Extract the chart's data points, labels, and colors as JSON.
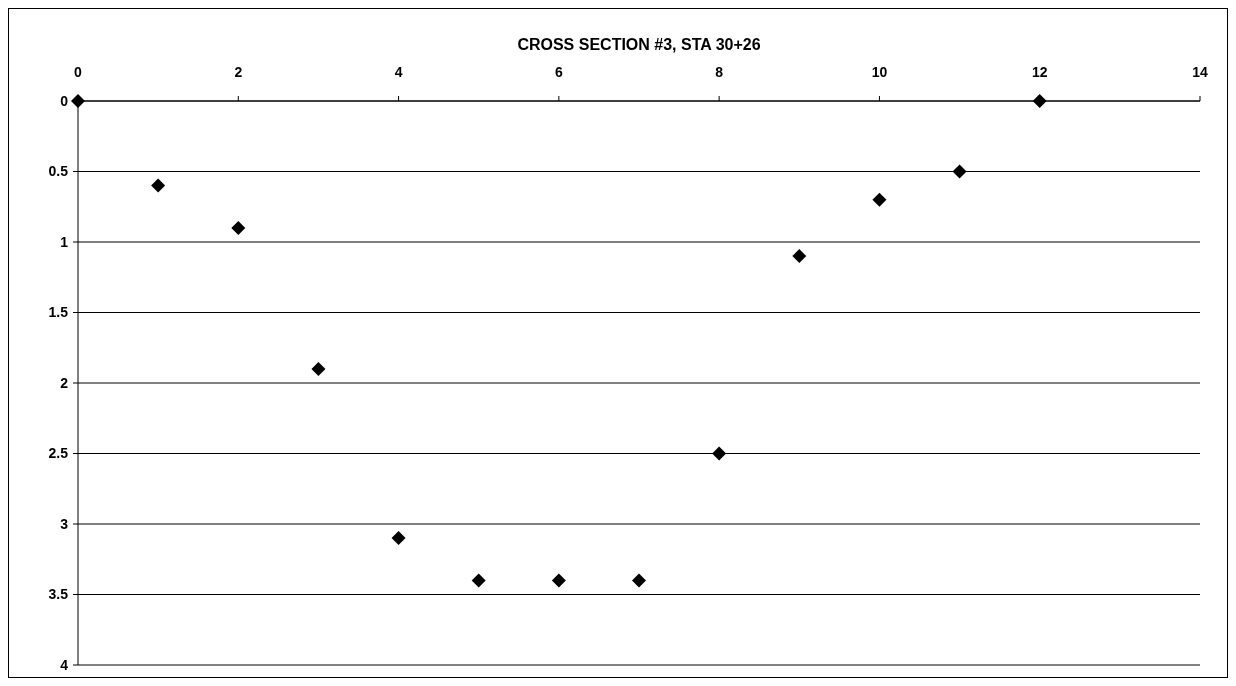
{
  "chart_data": {
    "type": "scatter",
    "title": "CROSS SECTION #3, STA 30+26",
    "x": [
      0,
      1,
      2,
      3,
      4,
      5,
      6,
      7,
      8,
      9,
      10,
      11,
      12
    ],
    "series": [
      {
        "color": "#000000",
        "values": [
          0,
          0.6,
          0.9,
          1.9,
          3.1,
          3.4,
          3.4,
          3.4,
          2.5,
          1.1,
          0.7,
          0.5,
          0
        ]
      }
    ],
    "xlim": [
      0,
      14
    ],
    "xticks": [
      0,
      2,
      4,
      6,
      8,
      10,
      12,
      14
    ],
    "ylim": [
      4,
      0
    ],
    "yticks": [
      0,
      0.5,
      1,
      1.5,
      2,
      2.5,
      3,
      3.5,
      4
    ],
    "grid": "y",
    "marker": "diamond"
  }
}
